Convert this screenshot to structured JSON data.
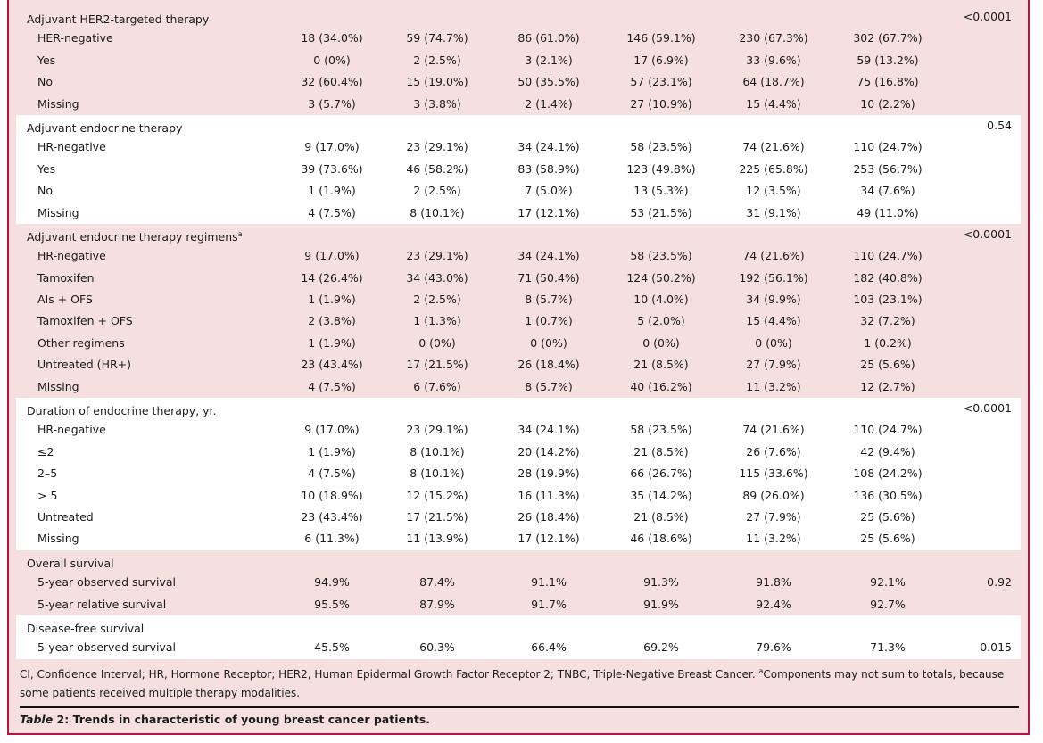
{
  "sections": [
    {
      "title": "Adjuvant HER2-targeted therapy",
      "sup": "",
      "p": "<0.0001",
      "rows": [
        {
          "label": "HER-negative",
          "values": [
            "18 (34.0%)",
            "59 (74.7%)",
            "86 (61.0%)",
            "146 (59.1%)",
            "230 (67.3%)",
            "302 (67.7%)"
          ]
        },
        {
          "label": "Yes",
          "values": [
            "0 (0%)",
            "2 (2.5%)",
            "3 (2.1%)",
            "17 (6.9%)",
            "33 (9.6%)",
            "59 (13.2%)"
          ]
        },
        {
          "label": "No",
          "values": [
            "32 (60.4%)",
            "15 (19.0%)",
            "50 (35.5%)",
            "57 (23.1%)",
            "64 (18.7%)",
            "75 (16.8%)"
          ]
        },
        {
          "label": "Missing",
          "values": [
            "3 (5.7%)",
            "3 (3.8%)",
            "2 (1.4%)",
            "27 (10.9%)",
            "15 (4.4%)",
            "10 (2.2%)"
          ]
        }
      ]
    },
    {
      "title": "Adjuvant endocrine therapy",
      "sup": "",
      "p": "0.54",
      "rows": [
        {
          "label": "HR-negative",
          "values": [
            "9 (17.0%)",
            "23 (29.1%)",
            "34 (24.1%)",
            "58 (23.5%)",
            "74 (21.6%)",
            "110 (24.7%)"
          ]
        },
        {
          "label": "Yes",
          "values": [
            "39 (73.6%)",
            "46 (58.2%)",
            "83 (58.9%)",
            "123 (49.8%)",
            "225 (65.8%)",
            "253 (56.7%)"
          ]
        },
        {
          "label": "No",
          "values": [
            "1 (1.9%)",
            "2 (2.5%)",
            "7 (5.0%)",
            "13 (5.3%)",
            "12 (3.5%)",
            "34 (7.6%)"
          ]
        },
        {
          "label": "Missing",
          "values": [
            "4 (7.5%)",
            "8 (10.1%)",
            "17 (12.1%)",
            "53 (21.5%)",
            "31 (9.1%)",
            "49 (11.0%)"
          ]
        }
      ]
    },
    {
      "title": "Adjuvant endocrine therapy regimens",
      "sup": "a",
      "p": "<0.0001",
      "rows": [
        {
          "label": "HR-negative",
          "values": [
            "9 (17.0%)",
            "23 (29.1%)",
            "34 (24.1%)",
            "58 (23.5%)",
            "74 (21.6%)",
            "110 (24.7%)"
          ]
        },
        {
          "label": "Tamoxifen",
          "values": [
            "14 (26.4%)",
            "34 (43.0%)",
            "71 (50.4%)",
            "124 (50.2%)",
            "192 (56.1%)",
            "182 (40.8%)"
          ]
        },
        {
          "label": "AIs + OFS",
          "values": [
            "1 (1.9%)",
            "2 (2.5%)",
            "8 (5.7%)",
            "10 (4.0%)",
            "34 (9.9%)",
            "103 (23.1%)"
          ]
        },
        {
          "label": "Tamoxifen + OFS",
          "values": [
            "2 (3.8%)",
            "1 (1.3%)",
            "1 (0.7%)",
            "5 (2.0%)",
            "15 (4.4%)",
            "32 (7.2%)"
          ]
        },
        {
          "label": "Other regimens",
          "values": [
            "1 (1.9%)",
            "0 (0%)",
            "0 (0%)",
            "0 (0%)",
            "0 (0%)",
            "1 (0.2%)"
          ]
        },
        {
          "label": "Untreated (HR+)",
          "values": [
            "23 (43.4%)",
            "17 (21.5%)",
            "26 (18.4%)",
            "21 (8.5%)",
            "27 (7.9%)",
            "25 (5.6%)"
          ]
        },
        {
          "label": "Missing",
          "values": [
            "4 (7.5%)",
            "6 (7.6%)",
            "8 (5.7%)",
            "40 (16.2%)",
            "11 (3.2%)",
            "12 (2.7%)"
          ]
        }
      ]
    },
    {
      "title": "Duration of endocrine therapy, yr.",
      "sup": "",
      "p": "<0.0001",
      "rows": [
        {
          "label": "HR-negative",
          "values": [
            "9 (17.0%)",
            "23 (29.1%)",
            "34 (24.1%)",
            "58 (23.5%)",
            "74 (21.6%)",
            "110 (24.7%)"
          ]
        },
        {
          "label": "≤2",
          "values": [
            "1 (1.9%)",
            "8 (10.1%)",
            "20 (14.2%)",
            "21 (8.5%)",
            "26 (7.6%)",
            "42 (9.4%)"
          ]
        },
        {
          "label": "2–5",
          "values": [
            "4 (7.5%)",
            "8 (10.1%)",
            "28 (19.9%)",
            "66 (26.7%)",
            "115 (33.6%)",
            "108 (24.2%)"
          ]
        },
        {
          "label": "> 5",
          "values": [
            "10 (18.9%)",
            "12 (15.2%)",
            "16 (11.3%)",
            "35 (14.2%)",
            "89 (26.0%)",
            "136 (30.5%)"
          ]
        },
        {
          "label": "Untreated",
          "values": [
            "23 (43.4%)",
            "17 (21.5%)",
            "26 (18.4%)",
            "21 (8.5%)",
            "27 (7.9%)",
            "25 (5.6%)"
          ]
        },
        {
          "label": "Missing",
          "values": [
            "6 (11.3%)",
            "11 (13.9%)",
            "17 (12.1%)",
            "46 (18.6%)",
            "11 (3.2%)",
            "25 (5.6%)"
          ]
        }
      ]
    },
    {
      "title": "Overall survival",
      "sup": "",
      "p": "",
      "rows": [
        {
          "label": "5-year observed survival",
          "p": "0.92",
          "values": [
            "94.9%",
            "87.4%",
            "91.1%",
            "91.3%",
            "91.8%",
            "92.1%"
          ]
        },
        {
          "label": "5-year relative survival",
          "values": [
            "95.5%",
            "87.9%",
            "91.7%",
            "91.9%",
            "92.4%",
            "92.7%"
          ]
        }
      ]
    },
    {
      "title": "Disease-free survival",
      "sup": "",
      "p": "",
      "rows": [
        {
          "label": "5-year observed survival",
          "p": "0.015",
          "values": [
            "45.5%",
            "60.3%",
            "66.4%",
            "69.2%",
            "79.6%",
            "71.3%"
          ]
        }
      ]
    }
  ],
  "footnote": {
    "text": "CI, Confidence Interval; HR, Hormone Receptor; HER2, Human Epidermal Growth Factor Receptor 2; TNBC, Triple-Negative Breast Cancer. ",
    "sup": "a",
    "text2": "Components may not sum to totals, because some patients received multiple therapy modalities."
  },
  "caption": {
    "label": "Table",
    "rest": " 2: Trends in characteristic of young breast cancer patients."
  },
  "colors": {
    "pink": "#f6e0df",
    "border": "#b3163f"
  }
}
